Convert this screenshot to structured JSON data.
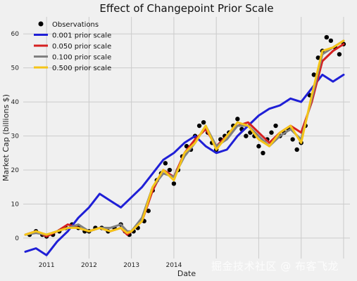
{
  "chart_data": {
    "type": "line",
    "title": "Effect of Changepoint Prior Scale",
    "xlabel": "Date",
    "ylabel": "Market Cap (billions $)",
    "xlim": [
      2010.45,
      2018.15
    ],
    "ylim": [
      -6,
      65
    ],
    "xticks": [
      {
        "value": 2011,
        "label": "2011"
      },
      {
        "value": 2012,
        "label": "2012"
      },
      {
        "value": 2013,
        "label": "2013"
      },
      {
        "value": 2014,
        "label": "2014"
      },
      {
        "value": 2015,
        "label": ""
      },
      {
        "value": 2016,
        "label": ""
      },
      {
        "value": 2017,
        "label": ""
      },
      {
        "value": 2018,
        "label": ""
      }
    ],
    "yticks": [
      0,
      10,
      20,
      30,
      40,
      50,
      60
    ],
    "grid": true,
    "legend_position": "top-left",
    "observations": {
      "name": "Observations",
      "color": "#000000",
      "x": [
        2010.6,
        2010.75,
        2010.9,
        2011.0,
        2011.15,
        2011.3,
        2011.45,
        2011.6,
        2011.75,
        2011.9,
        2012.0,
        2012.15,
        2012.3,
        2012.45,
        2012.6,
        2012.75,
        2012.85,
        2012.95,
        2013.05,
        2013.15,
        2013.3,
        2013.4,
        2013.5,
        2013.6,
        2013.7,
        2013.8,
        2013.9,
        2014.0,
        2014.1,
        2014.2,
        2014.3,
        2014.4,
        2014.5,
        2014.6,
        2014.7,
        2014.8,
        2014.9,
        2015.0,
        2015.1,
        2015.2,
        2015.3,
        2015.4,
        2015.5,
        2015.6,
        2015.7,
        2015.8,
        2015.9,
        2016.0,
        2016.1,
        2016.2,
        2016.3,
        2016.4,
        2016.5,
        2016.6,
        2016.7,
        2016.8,
        2016.9,
        2017.0,
        2017.1,
        2017.2,
        2017.3,
        2017.4,
        2017.5,
        2017.6,
        2017.7,
        2017.8,
        2017.9,
        2018.0
      ],
      "y": [
        1,
        2,
        1,
        0.5,
        1,
        2,
        3,
        4,
        3,
        2,
        2,
        3,
        3,
        2,
        3,
        4,
        2,
        1,
        2,
        3,
        5,
        8,
        14,
        17,
        19,
        22,
        20,
        16,
        20,
        24,
        27,
        26,
        30,
        33,
        34,
        31,
        28,
        26,
        29,
        30,
        31,
        33,
        35,
        32,
        30,
        31,
        30,
        27,
        25,
        29,
        31,
        33,
        30,
        31,
        32,
        29,
        26,
        28,
        33,
        42,
        48,
        53,
        55,
        59,
        58,
        56,
        54,
        57
      ]
    },
    "series": [
      {
        "name": "0.001 prior scale",
        "color": "#1f1fd6",
        "x": [
          2010.5,
          2010.75,
          2011.0,
          2011.25,
          2011.5,
          2011.75,
          2012.0,
          2012.25,
          2012.5,
          2012.75,
          2013.0,
          2013.25,
          2013.5,
          2013.75,
          2014.0,
          2014.25,
          2014.5,
          2014.75,
          2015.0,
          2015.25,
          2015.5,
          2015.75,
          2016.0,
          2016.25,
          2016.5,
          2016.75,
          2017.0,
          2017.25,
          2017.5,
          2017.75,
          2018.0
        ],
        "values": [
          -4,
          -3,
          -5,
          -1,
          2,
          6,
          9,
          13,
          11,
          9,
          12,
          15,
          19,
          23,
          25,
          28,
          30,
          27,
          25,
          26,
          30,
          33,
          36,
          38,
          39,
          41,
          40,
          44,
          48,
          46,
          48
        ]
      },
      {
        "name": "0.050 prior scale",
        "color": "#d62020",
        "x": [
          2010.5,
          2010.75,
          2011.0,
          2011.25,
          2011.5,
          2011.75,
          2012.0,
          2012.25,
          2012.5,
          2012.75,
          2012.9,
          2013.0,
          2013.25,
          2013.5,
          2013.75,
          2014.0,
          2014.25,
          2014.5,
          2014.75,
          2015.0,
          2015.25,
          2015.5,
          2015.75,
          2016.0,
          2016.25,
          2016.5,
          2016.75,
          2017.0,
          2017.25,
          2017.5,
          2017.75,
          2018.0
        ],
        "values": [
          1,
          2,
          0.5,
          2,
          4,
          3,
          2,
          3,
          2,
          3,
          1,
          2,
          5,
          14,
          20,
          18,
          25,
          29,
          32,
          27,
          30,
          33,
          34,
          31,
          28,
          31,
          33,
          31,
          40,
          52,
          55,
          57
        ]
      },
      {
        "name": "0.100 prior scale",
        "color": "#808080",
        "x": [
          2010.5,
          2010.75,
          2011.0,
          2011.25,
          2011.5,
          2011.75,
          2012.0,
          2012.25,
          2012.5,
          2012.75,
          2012.9,
          2013.0,
          2013.25,
          2013.5,
          2013.75,
          2014.0,
          2014.25,
          2014.5,
          2014.75,
          2015.0,
          2015.25,
          2015.5,
          2015.75,
          2016.0,
          2016.25,
          2016.5,
          2016.75,
          2017.0,
          2017.25,
          2017.5,
          2017.75,
          2018.0
        ],
        "values": [
          1,
          1.5,
          1,
          2,
          3,
          4,
          2,
          3,
          3,
          4,
          2,
          2,
          6,
          15,
          19,
          18,
          24,
          28,
          33,
          27,
          29,
          33,
          33,
          30,
          27,
          30,
          32,
          29,
          41,
          54,
          56,
          58
        ]
      },
      {
        "name": "0.500 prior scale",
        "color": "#f5c518",
        "x": [
          2010.5,
          2010.75,
          2011.0,
          2011.25,
          2011.5,
          2011.75,
          2012.0,
          2012.25,
          2012.5,
          2012.75,
          2012.9,
          2013.0,
          2013.25,
          2013.5,
          2013.75,
          2014.0,
          2014.25,
          2014.5,
          2014.75,
          2015.0,
          2015.25,
          2015.5,
          2015.75,
          2016.0,
          2016.25,
          2016.5,
          2016.75,
          2017.0,
          2017.25,
          2017.5,
          2017.75,
          2018.0
        ],
        "values": [
          1,
          2,
          1,
          2,
          3,
          3,
          2,
          3,
          2,
          3,
          1.5,
          2,
          5,
          15,
          20,
          17,
          25,
          28,
          33,
          26,
          30,
          34,
          33,
          29,
          27,
          31,
          33,
          28,
          42,
          55,
          56,
          58
        ]
      }
    ]
  },
  "watermark": "掘金技术社区 @ 布客飞龙"
}
